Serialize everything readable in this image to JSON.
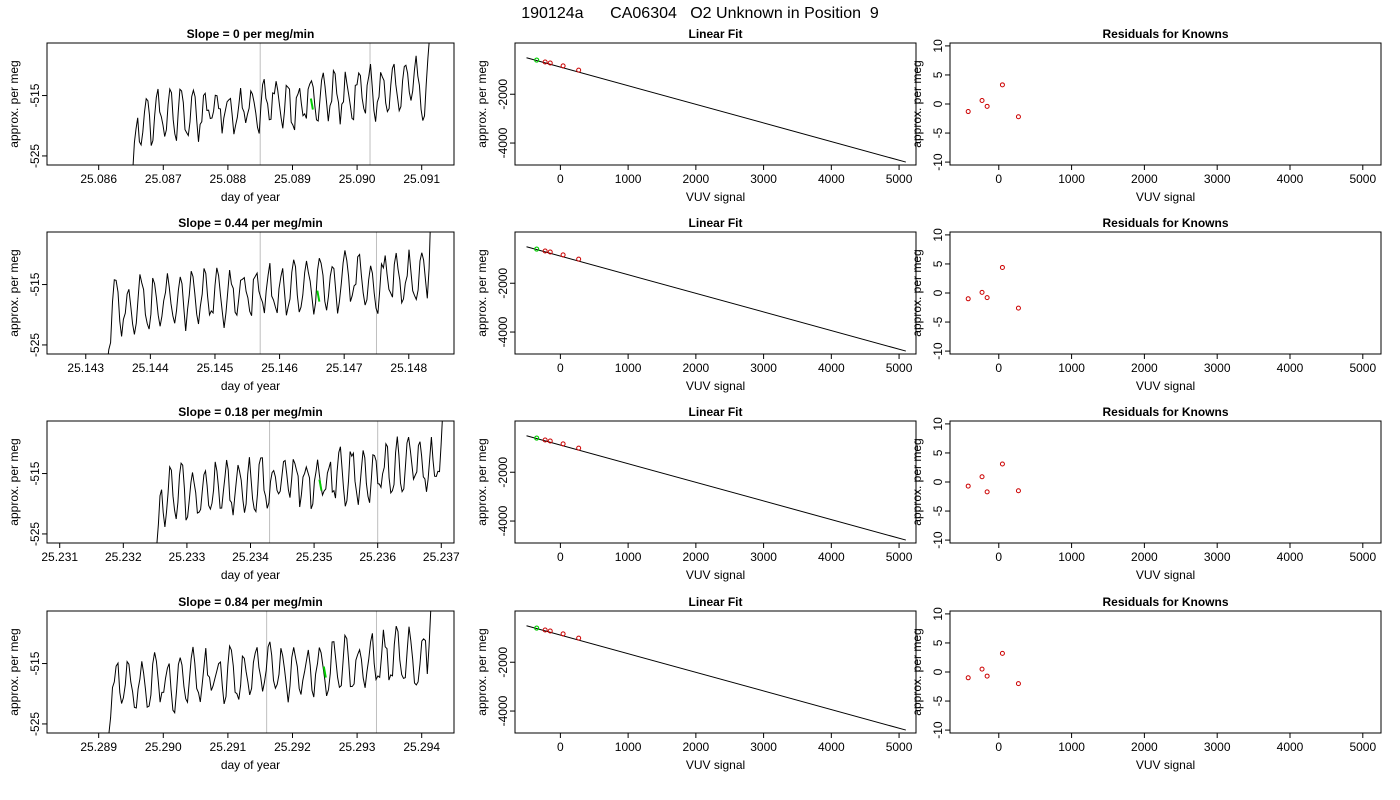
{
  "figure": {
    "suptitle": "190124a      CA06304   O2 Unknown in Position  9"
  },
  "colors": {
    "line": "#000000",
    "grid_vline": "#bebebe",
    "unknown": "#00cc00",
    "known": "#cc0000"
  },
  "chart_data": [
    {
      "type": "line",
      "row": 0,
      "col": 0,
      "title": "Slope =  0  per meg/min",
      "xlabel": "day of year",
      "ylabel": "approx. per meg",
      "xlim": [
        25.0852,
        25.0915
      ],
      "ylim": [
        -526.5,
        -506.3
      ],
      "xticks": [
        25.086,
        25.087,
        25.088,
        25.089,
        25.09,
        25.091
      ],
      "xtick_labels": [
        "25.086",
        "25.087",
        "25.088",
        "25.089",
        "25.090",
        "25.091"
      ],
      "yticks": [
        -525,
        -515
      ],
      "ytick_labels": [
        "-525",
        "-515"
      ],
      "vlines": [
        25.0885,
        25.0902
      ],
      "trace_start": 25.0865,
      "trace_end": 25.0912,
      "highlight": {
        "x": 25.0893,
        "y": -516.5
      }
    },
    {
      "type": "scatter",
      "row": 0,
      "col": 1,
      "title": "Linear Fit",
      "xlabel": "VUV signal",
      "ylabel": "approx. per meg",
      "xlim": [
        -670,
        5250
      ],
      "ylim": [
        -4900,
        100
      ],
      "xticks": [
        0,
        1000,
        2000,
        3000,
        4000,
        5000
      ],
      "yticks": [
        -4000,
        -2000
      ],
      "fit_line": {
        "x": [
          -500,
          5100
        ],
        "y": [
          -505,
          -4780
        ]
      },
      "known_points": [
        {
          "x": -225,
          "y": -680
        },
        {
          "x": -150,
          "y": -720
        },
        {
          "x": 40,
          "y": -840
        },
        {
          "x": 270,
          "y": -1010
        }
      ],
      "unknown_point": {
        "x": -350,
        "y": -600
      }
    },
    {
      "type": "scatter",
      "row": 0,
      "col": 2,
      "title": "Residuals for Knowns",
      "xlabel": "VUV signal",
      "ylabel": "approx. per meg",
      "xlim": [
        -670,
        5250
      ],
      "ylim": [
        -10.5,
        10.5
      ],
      "xticks": [
        0,
        1000,
        2000,
        3000,
        4000,
        5000
      ],
      "yticks": [
        -10,
        -5,
        0,
        5,
        10
      ],
      "points": [
        {
          "x": -420,
          "y": -1.3
        },
        {
          "x": -230,
          "y": 0.6
        },
        {
          "x": -160,
          "y": -0.4
        },
        {
          "x": 50,
          "y": 3.3
        },
        {
          "x": 270,
          "y": -2.2
        }
      ]
    },
    {
      "type": "line",
      "row": 1,
      "col": 0,
      "title": "Slope =  0.44  per meg/min",
      "xlabel": "day of year",
      "ylabel": "approx. per meg",
      "xlim": [
        25.1424,
        25.1487
      ],
      "ylim": [
        -526.5,
        -506.3
      ],
      "xticks": [
        25.143,
        25.144,
        25.145,
        25.146,
        25.147,
        25.148
      ],
      "xtick_labels": [
        "25.143",
        "25.144",
        "25.145",
        "25.146",
        "25.147",
        "25.148"
      ],
      "yticks": [
        -525,
        -515
      ],
      "ytick_labels": [
        "-525",
        "-515"
      ],
      "vlines": [
        25.1457,
        25.1475
      ],
      "trace_start": 25.1433,
      "trace_end": 25.1484,
      "highlight": {
        "x": 25.1466,
        "y": -517
      }
    },
    {
      "type": "scatter",
      "row": 1,
      "col": 1,
      "title": "Linear Fit",
      "xlabel": "VUV signal",
      "ylabel": "approx. per meg",
      "xlim": [
        -670,
        5250
      ],
      "ylim": [
        -4900,
        100
      ],
      "xticks": [
        0,
        1000,
        2000,
        3000,
        4000,
        5000
      ],
      "yticks": [
        -4000,
        -2000
      ],
      "fit_line": {
        "x": [
          -500,
          5100
        ],
        "y": [
          -505,
          -4780
        ]
      },
      "known_points": [
        {
          "x": -225,
          "y": -680
        },
        {
          "x": -150,
          "y": -720
        },
        {
          "x": 40,
          "y": -840
        },
        {
          "x": 270,
          "y": -1010
        }
      ],
      "unknown_point": {
        "x": -350,
        "y": -600
      }
    },
    {
      "type": "scatter",
      "row": 1,
      "col": 2,
      "title": "Residuals for Knowns",
      "xlabel": "VUV signal",
      "ylabel": "approx. per meg",
      "xlim": [
        -670,
        5250
      ],
      "ylim": [
        -10.5,
        10.5
      ],
      "xticks": [
        0,
        1000,
        2000,
        3000,
        4000,
        5000
      ],
      "yticks": [
        -10,
        -5,
        0,
        5,
        10
      ],
      "points": [
        {
          "x": -420,
          "y": -1.0
        },
        {
          "x": -230,
          "y": 0.1
        },
        {
          "x": -160,
          "y": -0.8
        },
        {
          "x": 50,
          "y": 4.4
        },
        {
          "x": 270,
          "y": -2.6
        }
      ]
    },
    {
      "type": "line",
      "row": 2,
      "col": 0,
      "title": "Slope =  0.18  per meg/min",
      "xlabel": "day of year",
      "ylabel": "approx. per meg",
      "xlim": [
        25.2308,
        25.2372
      ],
      "ylim": [
        -526.5,
        -506.3
      ],
      "xticks": [
        25.231,
        25.232,
        25.233,
        25.234,
        25.235,
        25.236,
        25.237
      ],
      "xtick_labels": [
        "25.231",
        "25.232",
        "25.233",
        "25.234",
        "25.235",
        "25.236",
        "25.237"
      ],
      "yticks": [
        -525,
        -515
      ],
      "ytick_labels": [
        "-525",
        "-515"
      ],
      "vlines": [
        25.2343,
        25.236
      ],
      "trace_start": 25.2325,
      "trace_end": 25.2371,
      "highlight": {
        "x": 25.2351,
        "y": -517
      }
    },
    {
      "type": "scatter",
      "row": 2,
      "col": 1,
      "title": "Linear Fit",
      "xlabel": "VUV signal",
      "ylabel": "approx. per meg",
      "xlim": [
        -670,
        5250
      ],
      "ylim": [
        -4900,
        100
      ],
      "xticks": [
        0,
        1000,
        2000,
        3000,
        4000,
        5000
      ],
      "yticks": [
        -4000,
        -2000
      ],
      "fit_line": {
        "x": [
          -500,
          5100
        ],
        "y": [
          -505,
          -4780
        ]
      },
      "known_points": [
        {
          "x": -225,
          "y": -680
        },
        {
          "x": -150,
          "y": -720
        },
        {
          "x": 40,
          "y": -840
        },
        {
          "x": 270,
          "y": -1010
        }
      ],
      "unknown_point": {
        "x": -350,
        "y": -600
      }
    },
    {
      "type": "scatter",
      "row": 2,
      "col": 2,
      "title": "Residuals for Knowns",
      "xlabel": "VUV signal",
      "ylabel": "approx. per meg",
      "xlim": [
        -670,
        5250
      ],
      "ylim": [
        -10.5,
        10.5
      ],
      "xticks": [
        0,
        1000,
        2000,
        3000,
        4000,
        5000
      ],
      "yticks": [
        -10,
        -5,
        0,
        5,
        10
      ],
      "points": [
        {
          "x": -420,
          "y": -0.7
        },
        {
          "x": -230,
          "y": 0.9
        },
        {
          "x": -160,
          "y": -1.7
        },
        {
          "x": 50,
          "y": 3.1
        },
        {
          "x": 270,
          "y": -1.5
        }
      ]
    },
    {
      "type": "line",
      "row": 3,
      "col": 0,
      "title": "Slope =  0.84  per meg/min",
      "xlabel": "day of year",
      "ylabel": "approx. per meg",
      "xlim": [
        25.2882,
        25.2945
      ],
      "ylim": [
        -526.5,
        -506.3
      ],
      "xticks": [
        25.289,
        25.29,
        25.291,
        25.292,
        25.293,
        25.294
      ],
      "xtick_labels": [
        "25.289",
        "25.290",
        "25.291",
        "25.292",
        "25.293",
        "25.294"
      ],
      "yticks": [
        -525,
        -515
      ],
      "ytick_labels": [
        "-525",
        "-515"
      ],
      "vlines": [
        25.2916,
        25.2933
      ],
      "trace_start": 25.2891,
      "trace_end": 25.2942,
      "highlight": {
        "x": 25.2925,
        "y": -516.5
      }
    },
    {
      "type": "scatter",
      "row": 3,
      "col": 1,
      "title": "Linear Fit",
      "xlabel": "VUV signal",
      "ylabel": "approx. per meg",
      "xlim": [
        -670,
        5250
      ],
      "ylim": [
        -4900,
        100
      ],
      "xticks": [
        0,
        1000,
        2000,
        3000,
        4000,
        5000
      ],
      "yticks": [
        -4000,
        -2000
      ],
      "fit_line": {
        "x": [
          -500,
          5100
        ],
        "y": [
          -505,
          -4780
        ]
      },
      "known_points": [
        {
          "x": -225,
          "y": -680
        },
        {
          "x": -150,
          "y": -720
        },
        {
          "x": 40,
          "y": -840
        },
        {
          "x": 270,
          "y": -1010
        }
      ],
      "unknown_point": {
        "x": -350,
        "y": -600
      }
    },
    {
      "type": "scatter",
      "row": 3,
      "col": 2,
      "title": "Residuals for Knowns",
      "xlabel": "VUV signal",
      "ylabel": "approx. per meg",
      "xlim": [
        -670,
        5250
      ],
      "ylim": [
        -10.5,
        10.5
      ],
      "xticks": [
        0,
        1000,
        2000,
        3000,
        4000,
        5000
      ],
      "yticks": [
        -10,
        -5,
        0,
        5,
        10
      ],
      "points": [
        {
          "x": -420,
          "y": -1.0
        },
        {
          "x": -230,
          "y": 0.5
        },
        {
          "x": -160,
          "y": -0.7
        },
        {
          "x": 50,
          "y": 3.2
        },
        {
          "x": 270,
          "y": -2.0
        }
      ]
    }
  ]
}
